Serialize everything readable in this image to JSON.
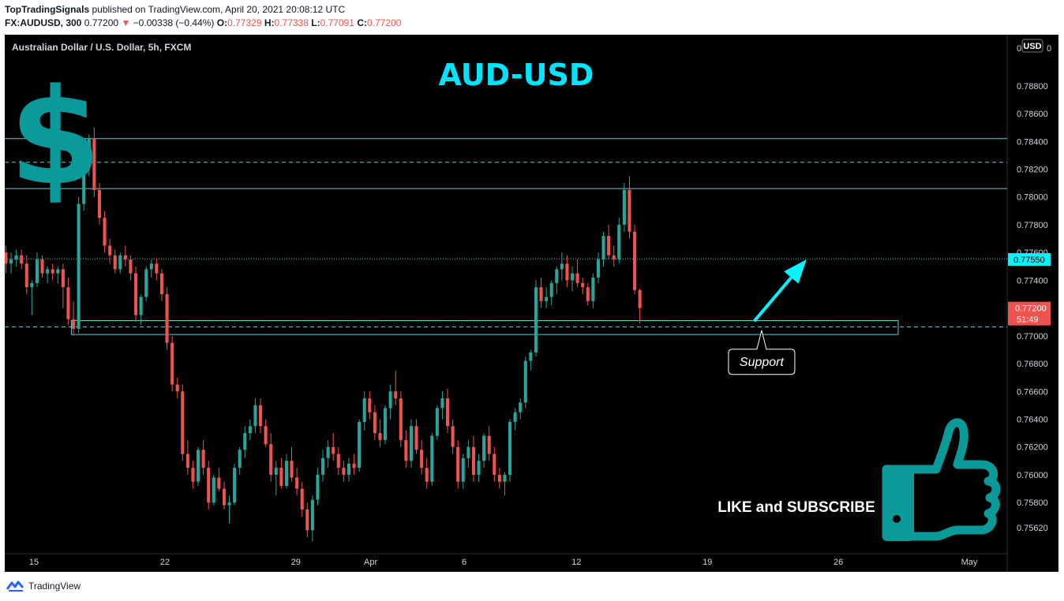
{
  "header": {
    "publisher": "TopTradingSignals",
    "published_text": "published on TradingView.com, April 20, 2021 20:08:12 UTC",
    "symbol": "FX:AUDUSD, 300",
    "last_price": "0.77200",
    "change_arrow": "▼",
    "change": "−0.00338 (−0.44%)",
    "o_label": "O:",
    "o_value": "0.77329",
    "h_label": "H:",
    "h_value": "0.77338",
    "l_label": "L:",
    "l_value": "0.77091",
    "c_label": "C:",
    "c_value": "0.77200"
  },
  "legend_title": "Australian Dollar / U.S. Dollar, 5h, FXCM",
  "currency_badge": "USD",
  "footer": {
    "brand": "TradingView",
    "icon": "tradingview-logo-icon"
  },
  "colors": {
    "up": "#26a69a",
    "down": "#ef5350",
    "line": "#5fd3de",
    "accent": "#00f5ff",
    "logo": "#0b9a9a"
  },
  "annotations": {
    "title": "AUD-USD",
    "dollar": "$",
    "support": "Support",
    "cta": "LIKE and SUBSCRIBE",
    "thumb_icon": "thumbs-up-icon",
    "arrow_icon": "up-right-arrow-icon"
  },
  "chart_data": {
    "type": "candlestick",
    "ylim": [
      0.755,
      0.791
    ],
    "y_ticks": [
      "0.78800",
      "0.78600",
      "0.78400",
      "0.78200",
      "0.78000",
      "0.77800",
      "0.77600",
      "0.77400",
      "0.77200",
      "0.77000",
      "0.76800",
      "0.76600",
      "0.76400",
      "0.76200",
      "0.76000",
      "0.75800",
      "0.75620"
    ],
    "y_top_label": "0",
    "x_ticks": [
      {
        "label": "15",
        "day": 0
      },
      {
        "label": "22",
        "day": 7
      },
      {
        "label": "29",
        "day": 14
      },
      {
        "label": "Apr",
        "day": 18
      },
      {
        "label": "6",
        "day": 23
      },
      {
        "label": "12",
        "day": 29
      },
      {
        "label": "19",
        "day": 36
      },
      {
        "label": "26",
        "day": 43
      },
      {
        "label": "May",
        "day": 50
      }
    ],
    "price_labels": [
      {
        "value": 0.7755,
        "text": "0.77550",
        "style": "highlight"
      },
      {
        "value": 0.772,
        "text": "0.77200",
        "sub": "51:49",
        "style": "current"
      }
    ],
    "levels": [
      {
        "value": 0.7842,
        "style": "solid"
      },
      {
        "value": 0.7825,
        "style": "dashed"
      },
      {
        "value": 0.7806,
        "style": "solid"
      },
      {
        "value": 0.77555,
        "style": "dotted"
      },
      {
        "value": 0.77065,
        "style": "dashed"
      }
    ],
    "support_zone": {
      "from_day": 2.0,
      "to_day": 46.2,
      "low": 0.7701,
      "high": 0.7711
    },
    "arrow": {
      "from_day": 38.5,
      "from_value": 0.77105,
      "to_day": 41.3,
      "to_value": 0.7755
    },
    "callout": {
      "day": 38.9,
      "value": 0.7704
    },
    "start_day": -1.5,
    "bars_per_day": 3.6,
    "ohlc": [
      [
        0.776,
        0.7765,
        0.7745,
        0.7752
      ],
      [
        0.7752,
        0.776,
        0.7745,
        0.7755
      ],
      [
        0.7755,
        0.7762,
        0.775,
        0.7758
      ],
      [
        0.7758,
        0.7762,
        0.7748,
        0.7752
      ],
      [
        0.7752,
        0.7758,
        0.773,
        0.7735
      ],
      [
        0.7735,
        0.774,
        0.7715,
        0.7738
      ],
      [
        0.7738,
        0.776,
        0.7735,
        0.7755
      ],
      [
        0.7755,
        0.7758,
        0.7742,
        0.7745
      ],
      [
        0.7745,
        0.775,
        0.7738,
        0.7748
      ],
      [
        0.7748,
        0.7752,
        0.774,
        0.7745
      ],
      [
        0.7745,
        0.775,
        0.7738,
        0.7748
      ],
      [
        0.7748,
        0.7752,
        0.772,
        0.7735
      ],
      [
        0.7735,
        0.7742,
        0.7708,
        0.7712
      ],
      [
        0.7712,
        0.7725,
        0.77,
        0.7705
      ],
      [
        0.7705,
        0.78,
        0.7702,
        0.7795
      ],
      [
        0.7795,
        0.783,
        0.779,
        0.7825
      ],
      [
        0.7825,
        0.7845,
        0.7815,
        0.7842
      ],
      [
        0.7842,
        0.785,
        0.78,
        0.7805
      ],
      [
        0.7805,
        0.781,
        0.778,
        0.7785
      ],
      [
        0.7785,
        0.779,
        0.776,
        0.7765
      ],
      [
        0.7765,
        0.777,
        0.7752,
        0.7758
      ],
      [
        0.7758,
        0.7762,
        0.7745,
        0.7748
      ],
      [
        0.7748,
        0.776,
        0.7745,
        0.7758
      ],
      [
        0.7758,
        0.7765,
        0.775,
        0.7755
      ],
      [
        0.7755,
        0.7758,
        0.774,
        0.7745
      ],
      [
        0.7745,
        0.775,
        0.771,
        0.7715
      ],
      [
        0.7715,
        0.773,
        0.7708,
        0.7728
      ],
      [
        0.7728,
        0.775,
        0.7725,
        0.7748
      ],
      [
        0.7748,
        0.7755,
        0.7742,
        0.7752
      ],
      [
        0.7752,
        0.7756,
        0.774,
        0.7745
      ],
      [
        0.7745,
        0.7748,
        0.7725,
        0.773
      ],
      [
        0.773,
        0.7735,
        0.769,
        0.7695
      ],
      [
        0.7695,
        0.77,
        0.766,
        0.7665
      ],
      [
        0.7665,
        0.767,
        0.7655,
        0.766
      ],
      [
        0.766,
        0.7665,
        0.761,
        0.7615
      ],
      [
        0.7615,
        0.7625,
        0.76,
        0.7605
      ],
      [
        0.7605,
        0.761,
        0.759,
        0.7595
      ],
      [
        0.7595,
        0.762,
        0.7592,
        0.7618
      ],
      [
        0.7618,
        0.7625,
        0.76,
        0.7605
      ],
      [
        0.7605,
        0.761,
        0.7575,
        0.758
      ],
      [
        0.758,
        0.76,
        0.7578,
        0.7598
      ],
      [
        0.7598,
        0.7605,
        0.7588,
        0.759
      ],
      [
        0.759,
        0.7595,
        0.7575,
        0.7578
      ],
      [
        0.7578,
        0.7585,
        0.7565,
        0.758
      ],
      [
        0.758,
        0.7608,
        0.7578,
        0.7605
      ],
      [
        0.7605,
        0.762,
        0.76,
        0.7618
      ],
      [
        0.7618,
        0.7635,
        0.7612,
        0.763
      ],
      [
        0.763,
        0.764,
        0.7625,
        0.7635
      ],
      [
        0.7635,
        0.7655,
        0.763,
        0.765
      ],
      [
        0.765,
        0.7655,
        0.763,
        0.7635
      ],
      [
        0.7635,
        0.764,
        0.762,
        0.7622
      ],
      [
        0.7622,
        0.763,
        0.7595,
        0.76
      ],
      [
        0.76,
        0.761,
        0.7585,
        0.7605
      ],
      [
        0.7605,
        0.7612,
        0.759,
        0.7592
      ],
      [
        0.7592,
        0.7615,
        0.759,
        0.761
      ],
      [
        0.761,
        0.762,
        0.7595,
        0.7598
      ],
      [
        0.7598,
        0.7605,
        0.7585,
        0.759
      ],
      [
        0.759,
        0.7595,
        0.757,
        0.7575
      ],
      [
        0.7575,
        0.758,
        0.7555,
        0.756
      ],
      [
        0.756,
        0.7585,
        0.7552,
        0.7582
      ],
      [
        0.7582,
        0.7605,
        0.7578,
        0.76
      ],
      [
        0.76,
        0.7618,
        0.7595,
        0.7612
      ],
      [
        0.7612,
        0.7625,
        0.7605,
        0.762
      ],
      [
        0.762,
        0.763,
        0.761,
        0.7615
      ],
      [
        0.7615,
        0.762,
        0.76,
        0.7605
      ],
      [
        0.7605,
        0.761,
        0.7595,
        0.76
      ],
      [
        0.76,
        0.7612,
        0.7595,
        0.7608
      ],
      [
        0.7608,
        0.7615,
        0.76,
        0.7605
      ],
      [
        0.7605,
        0.764,
        0.7602,
        0.7638
      ],
      [
        0.7638,
        0.766,
        0.7632,
        0.7655
      ],
      [
        0.7655,
        0.766,
        0.764,
        0.7645
      ],
      [
        0.7645,
        0.765,
        0.7625,
        0.763
      ],
      [
        0.763,
        0.764,
        0.762,
        0.7625
      ],
      [
        0.7625,
        0.765,
        0.7622,
        0.7648
      ],
      [
        0.7648,
        0.7665,
        0.764,
        0.766
      ],
      [
        0.766,
        0.7675,
        0.765,
        0.7655
      ],
      [
        0.7655,
        0.766,
        0.762,
        0.7625
      ],
      [
        0.7625,
        0.7632,
        0.7605,
        0.761
      ],
      [
        0.761,
        0.764,
        0.7605,
        0.7635
      ],
      [
        0.7635,
        0.764,
        0.7615,
        0.7618
      ],
      [
        0.7618,
        0.7625,
        0.76,
        0.7605
      ],
      [
        0.7605,
        0.7612,
        0.759,
        0.7595
      ],
      [
        0.7595,
        0.763,
        0.7592,
        0.7628
      ],
      [
        0.7628,
        0.765,
        0.7625,
        0.7648
      ],
      [
        0.7648,
        0.766,
        0.764,
        0.7655
      ],
      [
        0.7655,
        0.7662,
        0.763,
        0.7635
      ],
      [
        0.7635,
        0.764,
        0.7615,
        0.762
      ],
      [
        0.762,
        0.7625,
        0.759,
        0.7595
      ],
      [
        0.7595,
        0.7615,
        0.759,
        0.7612
      ],
      [
        0.7612,
        0.7625,
        0.7605,
        0.762
      ],
      [
        0.762,
        0.7628,
        0.7595,
        0.76
      ],
      [
        0.76,
        0.7615,
        0.7595,
        0.761
      ],
      [
        0.761,
        0.763,
        0.7605,
        0.7628
      ],
      [
        0.7628,
        0.7635,
        0.761,
        0.7615
      ],
      [
        0.7615,
        0.762,
        0.7595,
        0.76
      ],
      [
        0.76,
        0.7605,
        0.759,
        0.7595
      ],
      [
        0.7595,
        0.7602,
        0.7585,
        0.76
      ],
      [
        0.76,
        0.764,
        0.7595,
        0.7638
      ],
      [
        0.7638,
        0.7648,
        0.7632,
        0.7645
      ],
      [
        0.7645,
        0.7655,
        0.764,
        0.7652
      ],
      [
        0.7652,
        0.7685,
        0.7648,
        0.7682
      ],
      [
        0.7682,
        0.769,
        0.7675,
        0.7688
      ],
      [
        0.7688,
        0.774,
        0.7685,
        0.7735
      ],
      [
        0.7735,
        0.7742,
        0.772,
        0.7725
      ],
      [
        0.7725,
        0.7735,
        0.772,
        0.7728
      ],
      [
        0.7728,
        0.774,
        0.7722,
        0.7738
      ],
      [
        0.7738,
        0.775,
        0.773,
        0.7748
      ],
      [
        0.7748,
        0.776,
        0.774,
        0.7752
      ],
      [
        0.7752,
        0.7758,
        0.7735,
        0.774
      ],
      [
        0.774,
        0.775,
        0.7732,
        0.7745
      ],
      [
        0.7745,
        0.7755,
        0.7735,
        0.7738
      ],
      [
        0.7738,
        0.7742,
        0.773,
        0.7735
      ],
      [
        0.7735,
        0.7738,
        0.7722,
        0.7725
      ],
      [
        0.7725,
        0.7745,
        0.772,
        0.7742
      ],
      [
        0.7742,
        0.776,
        0.7738,
        0.7755
      ],
      [
        0.7755,
        0.7775,
        0.775,
        0.7772
      ],
      [
        0.7772,
        0.778,
        0.7755,
        0.7758
      ],
      [
        0.7758,
        0.7765,
        0.775,
        0.7755
      ],
      [
        0.7755,
        0.7785,
        0.7752,
        0.778
      ],
      [
        0.778,
        0.781,
        0.7775,
        0.7805
      ],
      [
        0.7805,
        0.7815,
        0.777,
        0.7775
      ],
      [
        0.7775,
        0.778,
        0.773,
        0.7733
      ],
      [
        0.7733,
        0.7734,
        0.7709,
        0.772
      ]
    ]
  }
}
